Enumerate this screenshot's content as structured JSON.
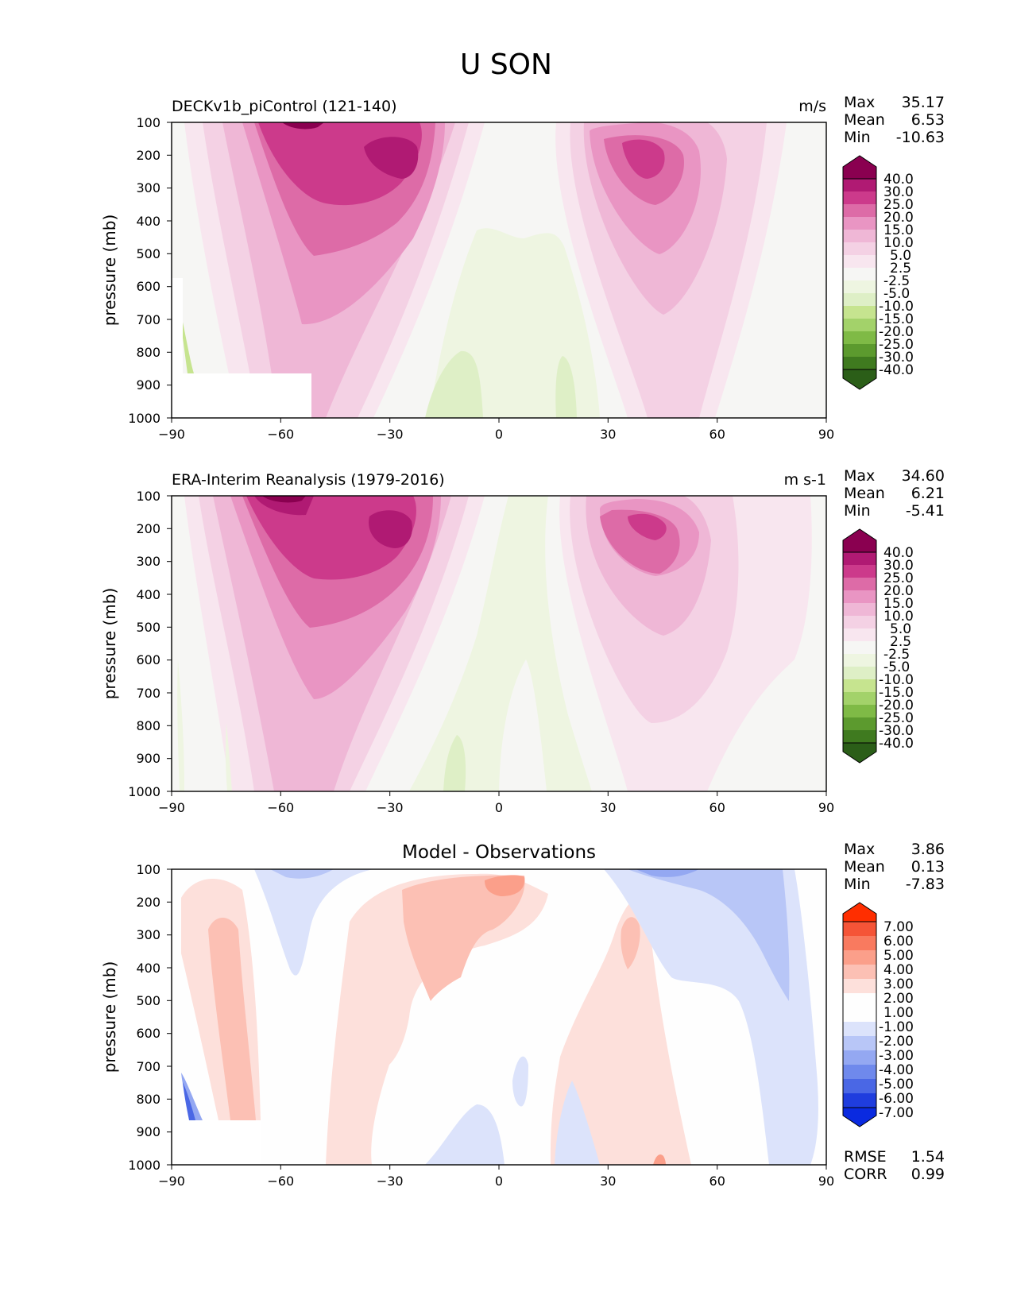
{
  "figure_title": "U SON",
  "colors": {
    "pink": [
      "#f6f6f4",
      "#f8e6ef",
      "#f4d1e4",
      "#efb7d6",
      "#e995c3",
      "#dd6ba7",
      "#cc3a8b",
      "#b01a73",
      "#8a0050"
    ],
    "green": [
      "#eef5e1",
      "#deefc6",
      "#c6e48f",
      "#a3d26a",
      "#7fba46",
      "#5c9a2e",
      "#3f7a1f",
      "#2b5e18"
    ],
    "red": [
      "#fde0db",
      "#fcc0b4",
      "#fb9f8a",
      "#f97a5f",
      "#f55437",
      "#ff2e00"
    ],
    "blue": [
      "#dce3fb",
      "#b8c6f7",
      "#94a8f2",
      "#6f89ec",
      "#4a67e5",
      "#1f3dde"
    ]
  },
  "chart_data": [
    {
      "type": "heatmap",
      "title": "DECKv1b_piControl (121-140)",
      "units": "m/s",
      "ylabel": "pressure (mb)",
      "xlim": [
        -90,
        90
      ],
      "ylim": [
        1000,
        100
      ],
      "x_ticks": [
        "−90",
        "−60",
        "−30",
        "0",
        "30",
        "60",
        "90"
      ],
      "y_ticks": [
        "100",
        "200",
        "300",
        "400",
        "500",
        "600",
        "700",
        "800",
        "900",
        "1000"
      ],
      "stats": [
        {
          "label": "Max",
          "value": "35.17"
        },
        {
          "label": "Mean",
          "value": "6.53"
        },
        {
          "label": "Min",
          "value": "-10.63"
        }
      ],
      "colorbar_levels": [
        "40.0",
        "30.0",
        "25.0",
        "20.0",
        "15.0",
        "10.0",
        "5.0",
        "2.5",
        "-2.5",
        "-5.0",
        "-10.0",
        "-15.0",
        "-20.0",
        "-25.0",
        "-30.0",
        "-40.0"
      ],
      "grid": false
    },
    {
      "type": "heatmap",
      "title": "ERA-Interim Reanalysis (1979-2016)",
      "units": "m s-1",
      "ylabel": "pressure (mb)",
      "xlim": [
        -90,
        90
      ],
      "ylim": [
        1000,
        100
      ],
      "x_ticks": [
        "−90",
        "−60",
        "−30",
        "0",
        "30",
        "60",
        "90"
      ],
      "y_ticks": [
        "100",
        "200",
        "300",
        "400",
        "500",
        "600",
        "700",
        "800",
        "900",
        "1000"
      ],
      "stats": [
        {
          "label": "Max",
          "value": "34.60"
        },
        {
          "label": "Mean",
          "value": "6.21"
        },
        {
          "label": "Min",
          "value": "-5.41"
        }
      ],
      "colorbar_levels": [
        "40.0",
        "30.0",
        "25.0",
        "20.0",
        "15.0",
        "10.0",
        "5.0",
        "2.5",
        "-2.5",
        "-5.0",
        "-10.0",
        "-15.0",
        "-20.0",
        "-25.0",
        "-30.0",
        "-40.0"
      ],
      "grid": false
    },
    {
      "type": "heatmap",
      "title": "Model - Observations",
      "units": "",
      "ylabel": "pressure (mb)",
      "xlim": [
        -90,
        90
      ],
      "ylim": [
        1000,
        100
      ],
      "x_ticks": [
        "−90",
        "−60",
        "−30",
        "0",
        "30",
        "60",
        "90"
      ],
      "y_ticks": [
        "100",
        "200",
        "300",
        "400",
        "500",
        "600",
        "700",
        "800",
        "900",
        "1000"
      ],
      "stats": [
        {
          "label": "Max",
          "value": "3.86"
        },
        {
          "label": "Mean",
          "value": "0.13"
        },
        {
          "label": "Min",
          "value": "-7.83"
        }
      ],
      "colorbar_levels": [
        "7.00",
        "6.00",
        "5.00",
        "4.00",
        "3.00",
        "2.00",
        "1.00",
        "-1.00",
        "-2.00",
        "-3.00",
        "-4.00",
        "-5.00",
        "-6.00",
        "-7.00"
      ],
      "extra_stats": [
        {
          "label": "RMSE",
          "value": "1.54"
        },
        {
          "label": "CORR",
          "value": "0.99"
        }
      ],
      "grid": false
    }
  ]
}
